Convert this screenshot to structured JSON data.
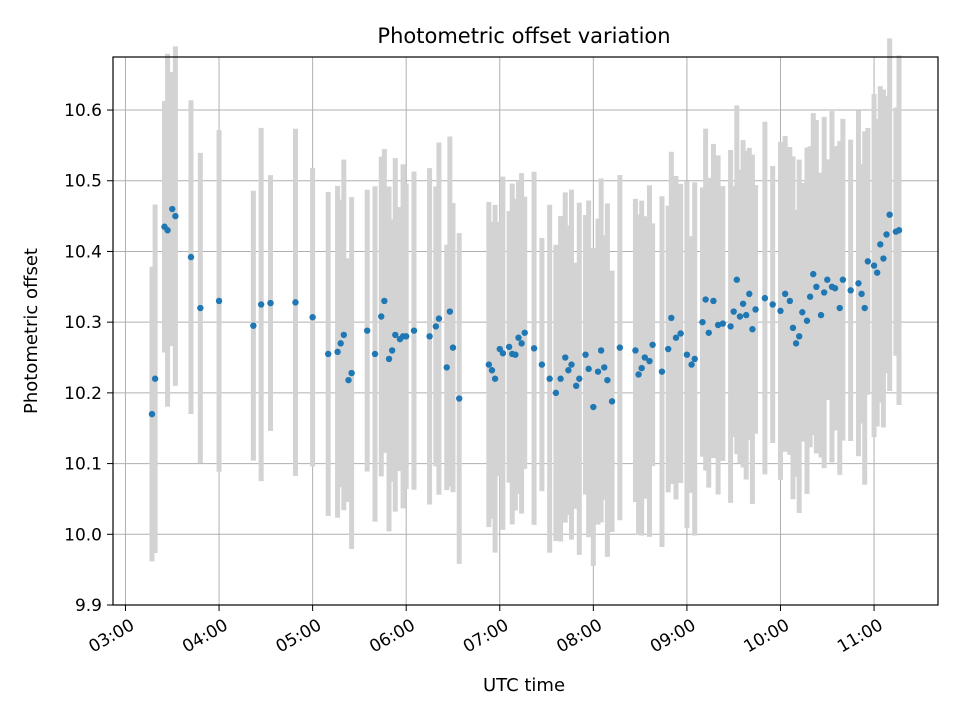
{
  "chart_data": {
    "type": "scatter",
    "title": "Photometric offset variation",
    "xlabel": "UTC time",
    "ylabel": "Photometric offset",
    "x_axis_kind": "time",
    "xlim": [
      "02:52",
      "11:41"
    ],
    "ylim": [
      9.9,
      10.675
    ],
    "x_ticks": [
      "03:00",
      "04:00",
      "05:00",
      "06:00",
      "07:00",
      "08:00",
      "09:00",
      "10:00",
      "11:00"
    ],
    "y_ticks": [
      "9.9",
      "10.0",
      "10.1",
      "10.2",
      "10.3",
      "10.4",
      "10.5",
      "10.6"
    ],
    "grid": true,
    "marker_color": "#1f77b4",
    "errorbar_color": "#d3d3d3",
    "series": [
      {
        "x": [
          "03:17",
          "03:19",
          "03:25",
          "03:27",
          "03:30",
          "03:32",
          "03:42",
          "03:48",
          "04:00",
          "04:22",
          "04:27",
          "04:33",
          "04:49",
          "05:00",
          "05:10",
          "05:16",
          "05:18",
          "05:20",
          "05:23",
          "05:25",
          "05:35",
          "05:40",
          "05:44",
          "05:46",
          "05:49",
          "05:51",
          "05:53",
          "05:56",
          "05:58",
          "06:00",
          "06:05",
          "06:15",
          "06:19",
          "06:21",
          "06:26",
          "06:28",
          "06:30",
          "06:34",
          "06:53",
          "06:55",
          "06:57",
          "07:00",
          "07:02",
          "07:06",
          "07:08",
          "07:10",
          "07:12",
          "07:14",
          "07:16",
          "07:22",
          "07:27",
          "07:32",
          "07:36",
          "07:39",
          "07:42",
          "07:44",
          "07:46",
          "07:49",
          "07:51",
          "07:55",
          "07:57",
          "08:00",
          "08:03",
          "08:05",
          "08:07",
          "08:09",
          "08:12",
          "08:17",
          "08:27",
          "08:29",
          "08:31",
          "08:33",
          "08:36",
          "08:38",
          "08:44",
          "08:48",
          "08:50",
          "08:53",
          "08:56",
          "09:00",
          "09:03",
          "09:05",
          "09:10",
          "09:12",
          "09:14",
          "09:17",
          "09:20",
          "09:23",
          "09:28",
          "09:30",
          "09:32",
          "09:34",
          "09:36",
          "09:38",
          "09:40",
          "09:42",
          "09:44",
          "09:50",
          "09:55",
          "10:00",
          "10:03",
          "10:06",
          "10:08",
          "10:10",
          "10:12",
          "10:14",
          "10:17",
          "10:19",
          "10:21",
          "10:23",
          "10:26",
          "10:28",
          "10:30",
          "10:33",
          "10:35",
          "10:38",
          "10:40",
          "10:45",
          "10:50",
          "10:52",
          "10:54",
          "10:56",
          "11:00",
          "11:02",
          "11:04",
          "11:06",
          "11:08",
          "11:10",
          "11:14",
          "11:16"
        ],
        "y": [
          10.17,
          10.22,
          10.435,
          10.43,
          10.46,
          10.45,
          10.392,
          10.32,
          10.33,
          10.295,
          10.325,
          10.327,
          10.328,
          10.307,
          10.255,
          10.258,
          10.27,
          10.282,
          10.218,
          10.228,
          10.288,
          10.255,
          10.308,
          10.33,
          10.248,
          10.26,
          10.282,
          10.276,
          10.28,
          10.28,
          10.288,
          10.28,
          10.294,
          10.305,
          10.236,
          10.315,
          10.264,
          10.192,
          10.24,
          10.232,
          10.22,
          10.262,
          10.256,
          10.265,
          10.255,
          10.254,
          10.278,
          10.27,
          10.285,
          10.263,
          10.24,
          10.22,
          10.2,
          10.22,
          10.25,
          10.232,
          10.24,
          10.21,
          10.22,
          10.254,
          10.234,
          10.18,
          10.23,
          10.26,
          10.236,
          10.218,
          10.188,
          10.264,
          10.26,
          10.226,
          10.235,
          10.25,
          10.245,
          10.268,
          10.23,
          10.262,
          10.306,
          10.278,
          10.284,
          10.254,
          10.24,
          10.248,
          10.3,
          10.332,
          10.285,
          10.33,
          10.296,
          10.298,
          10.294,
          10.315,
          10.36,
          10.308,
          10.326,
          10.31,
          10.34,
          10.29,
          10.318,
          10.334,
          10.325,
          10.316,
          10.34,
          10.33,
          10.292,
          10.27,
          10.28,
          10.314,
          10.302,
          10.336,
          10.368,
          10.35,
          10.31,
          10.342,
          10.36,
          10.35,
          10.348,
          10.32,
          10.36,
          10.345,
          10.355,
          10.34,
          10.32,
          10.386,
          10.38,
          10.37,
          10.41,
          10.39,
          10.424,
          10.452,
          10.428,
          10.43
        ]
      }
    ]
  }
}
